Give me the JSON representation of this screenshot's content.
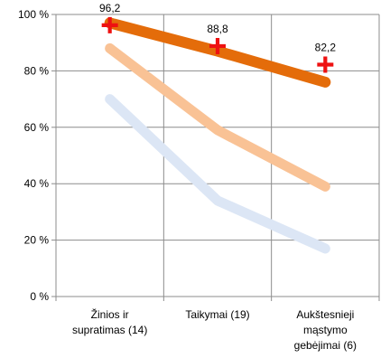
{
  "chart_data": {
    "type": "line",
    "categories": [
      [
        "Žinios ir",
        "supratimas (14)"
      ],
      [
        "Taikymai (19)"
      ],
      [
        "Aukštesnieji",
        "mąstymo",
        "gebėjimai (6)"
      ]
    ],
    "ylim": [
      0,
      100
    ],
    "yticks": [
      0,
      20,
      40,
      60,
      80,
      100
    ],
    "ytick_labels": [
      "0 %",
      "20 %",
      "40 %",
      "60 %",
      "80 %",
      "100 %"
    ],
    "grid": true,
    "series": [
      {
        "values": [
          70,
          34,
          17
        ],
        "color": "#dce6f5"
      },
      {
        "values": [
          88,
          59,
          39
        ],
        "color": "#f9c295"
      },
      {
        "values": [
          97,
          87,
          76
        ],
        "color": "#e46c0a"
      }
    ],
    "markers": {
      "values": [
        96.2,
        88.8,
        82.2
      ],
      "labels": [
        "96,2",
        "88,8",
        "82,2"
      ],
      "color": "#ee1111",
      "shape": "plus"
    }
  }
}
